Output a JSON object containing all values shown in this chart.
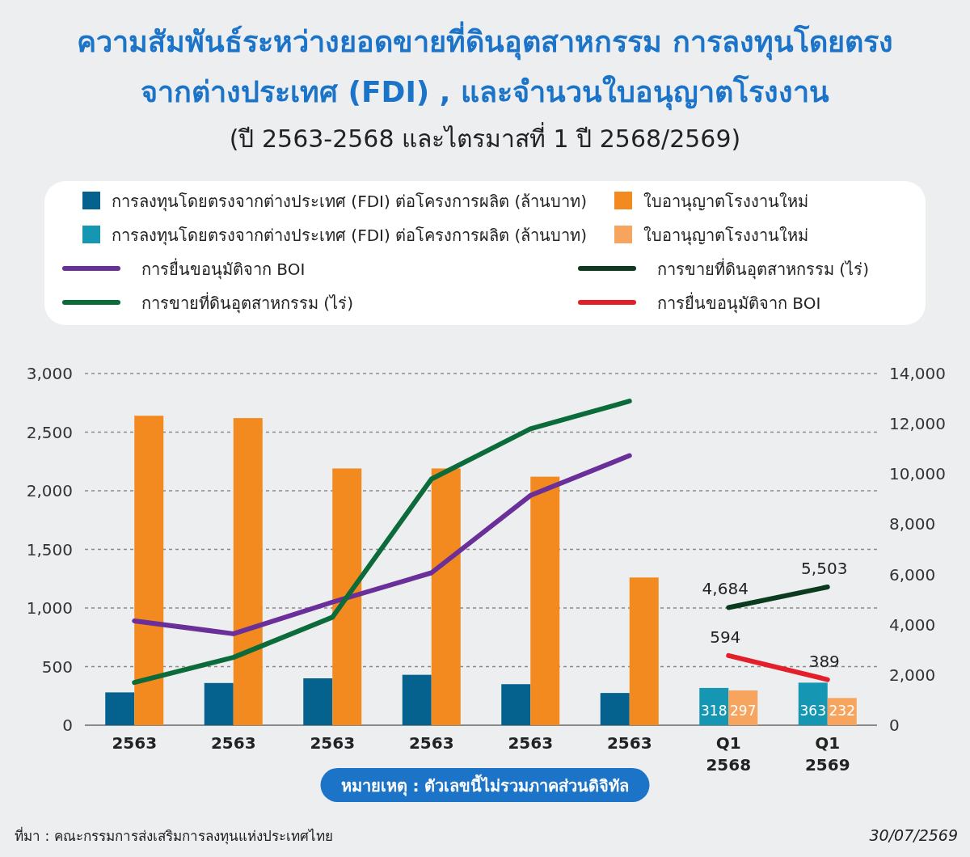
{
  "chart_data": {
    "type": "bar",
    "title": "ความสัมพันธ์ระหว่างยอดขายที่ดินอุตสาหกรรม การลงทุนโดยตรง\nจากต่างประเทศ (FDI) , และจำนวนใบอนุญาตโรงงาน",
    "subtitle": "(ปี 2563-2568 และไตรมาสที่ 1 ปี 2568/2569)",
    "categories": [
      "2563",
      "2563",
      "2563",
      "2563",
      "2563",
      "2563",
      "Q1\n2568",
      "Q1\n2569"
    ],
    "series": [
      {
        "name": "การลงทุนโดยตรงจากต่างประเทศ (FDI) ต่อโครงการผลิต (ล้านบาท)",
        "color": "#05628f",
        "values": [
          280,
          360,
          400,
          430,
          350,
          275,
          null,
          null
        ]
      },
      {
        "name": "ใบอานุญาตโรงงานใหม่",
        "color": "#f28a1f",
        "values": [
          2640,
          2620,
          2190,
          2190,
          2120,
          1260,
          null,
          null
        ]
      },
      {
        "name": "การลงทุนโดยตรงจากต่างประเทศ (FDI) ต่อโครงการผลิต (ล้านบาท)",
        "color": "#1597b3",
        "values": [
          null,
          null,
          null,
          null,
          null,
          null,
          318,
          363
        ],
        "value_labels": [
          null,
          null,
          null,
          null,
          null,
          null,
          "318",
          "363"
        ]
      },
      {
        "name": "ใบอานุญาตโรงงานใหม่",
        "color": "#f7a45e",
        "values": [
          null,
          null,
          null,
          null,
          null,
          null,
          297,
          232
        ],
        "value_labels": [
          null,
          null,
          null,
          null,
          null,
          null,
          "297",
          "232"
        ]
      },
      {
        "name": "การยื่นขอนุมัติจาก BOI",
        "type": "line",
        "color": "#6a2f99",
        "values": [
          890,
          780,
          1050,
          1300,
          1960,
          2300,
          null,
          null
        ]
      },
      {
        "name": "การขายที่ดินอุตสาหกรรม (ไร่)",
        "type": "line",
        "axis": "y2",
        "color": "#0b3a1f",
        "values": [
          null,
          null,
          null,
          null,
          null,
          null,
          4684,
          5503
        ],
        "value_labels": [
          null,
          null,
          null,
          null,
          null,
          null,
          "4,684",
          "5,503"
        ]
      },
      {
        "name": "การขายที่ดินอุตสาหกรรม (ไร่)",
        "type": "line",
        "axis": "y2",
        "color": "#0c6b3a",
        "values": [
          1700,
          2700,
          4300,
          9800,
          11800,
          12900,
          null,
          null
        ]
      },
      {
        "name": "การยื่นขอนุมัติจาก BOI",
        "type": "line",
        "color": "#e3202a",
        "values": [
          null,
          null,
          null,
          null,
          null,
          null,
          594,
          389
        ],
        "value_labels": [
          null,
          null,
          null,
          null,
          null,
          null,
          "594",
          "389"
        ]
      }
    ],
    "ylim": [
      0,
      3000
    ],
    "yticks": [
      0,
      {
        "value": 500,
        "label": "500"
      },
      {
        "value": 1000,
        "label": "1,000"
      },
      {
        "value": 1500,
        "label": "1,500"
      },
      {
        "value": 2000,
        "label": "2,000"
      },
      {
        "value": 2500,
        "label": "2,500"
      },
      {
        "value": 3000,
        "label": "3,000"
      }
    ],
    "y2lim": [
      0,
      14000
    ],
    "y2ticks": [
      0,
      {
        "value": 2000,
        "label": "2,000"
      },
      {
        "value": 4000,
        "label": "4,000"
      },
      {
        "value": 6000,
        "label": "6,000"
      },
      {
        "value": 8000,
        "label": "8,000"
      },
      {
        "value": 10000,
        "label": "10,000"
      },
      {
        "value": 12000,
        "label": "12,000"
      },
      {
        "value": 14000,
        "label": "14,000"
      }
    ],
    "grid": "y",
    "legend": "top",
    "annotations": [
      "หมายเหตุ : ตัวเลขนี้ไม่รวมภาคส่วนดิจิทัล",
      "ที่มา : คณะกรรมการส่งเสริมการลงทุนแห่งประเทศไทย",
      "30/07/2569"
    ]
  }
}
